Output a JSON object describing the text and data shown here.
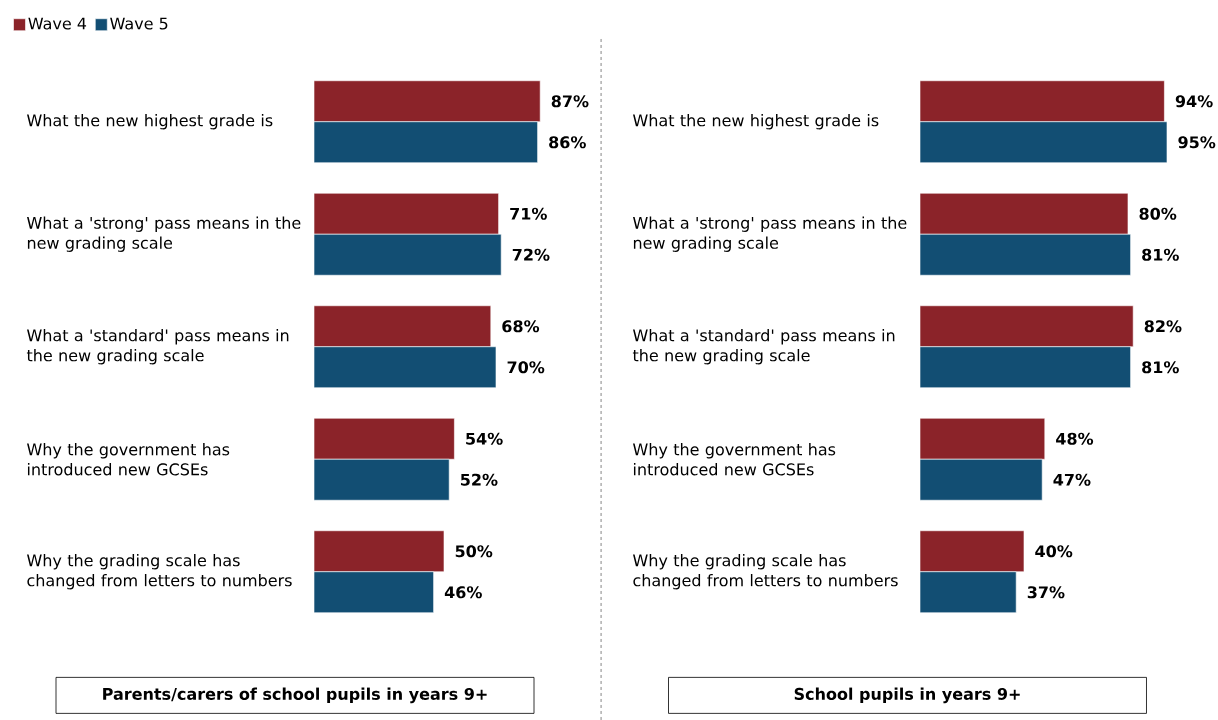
{
  "chart_data": [
    {
      "type": "bar",
      "orientation": "horizontal",
      "title": "Parents/carers of school pupils in years 9+",
      "categories": [
        "What the new highest grade is",
        "What a 'strong' pass means in the new grading scale",
        "What a 'standard' pass means in the new grading scale",
        "Why the government has introduced new GCSEs",
        "Why the grading scale has changed from letters to numbers"
      ],
      "series": [
        {
          "name": "Wave 4",
          "color": "#8b2329",
          "values": [
            87,
            71,
            68,
            54,
            50
          ],
          "value_labels": [
            "87%",
            "71%",
            "68%",
            "54%",
            "50%"
          ]
        },
        {
          "name": "Wave 5",
          "color": "#124e73",
          "values": [
            86,
            72,
            70,
            52,
            46
          ],
          "value_labels": [
            "86%",
            "72%",
            "70%",
            "52%",
            "46%"
          ]
        }
      ],
      "tick_labels": "y",
      "legend": "top left"
    },
    {
      "type": "bar",
      "orientation": "horizontal",
      "title": "School pupils in years 9+",
      "categories": [
        "What the new highest grade is",
        "What a 'strong' pass means in the new grading scale",
        "What a 'standard' pass means in the new grading scale",
        "Why the government has introduced new GCSEs",
        "Why the grading scale has changed from letters to numbers"
      ],
      "series": [
        {
          "color": "#8b2329",
          "values": [
            94,
            80,
            82,
            48,
            40
          ],
          "value_labels": [
            "94%",
            "80%",
            "82%",
            "48%",
            "40%"
          ]
        },
        {
          "color": "#124e73",
          "values": [
            95,
            81,
            81,
            47,
            37
          ],
          "value_labels": [
            "95%",
            "81%",
            "81%",
            "47%",
            "37%"
          ]
        }
      ],
      "tick_labels": "y"
    }
  ]
}
